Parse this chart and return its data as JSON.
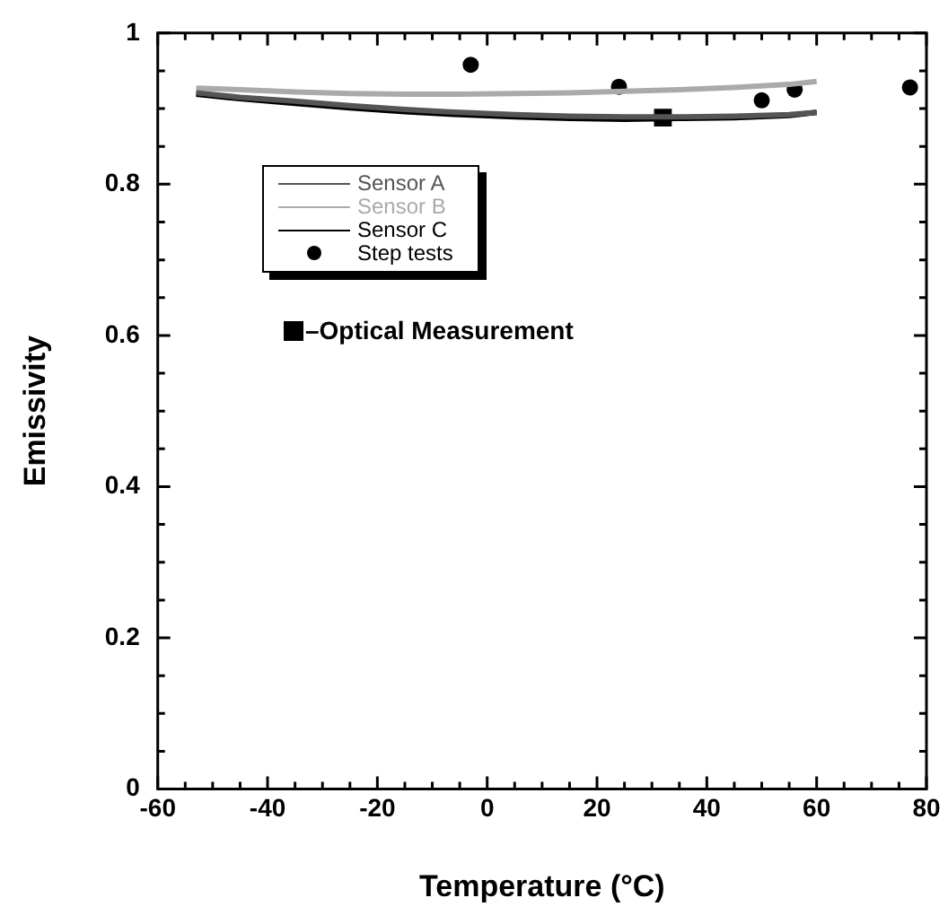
{
  "chart_data": {
    "type": "line",
    "xlabel": "Temperature (°C)",
    "ylabel": "Emissivity",
    "xlim": [
      -60,
      80
    ],
    "xticks": [
      -60,
      {
        "value": -55,
        "label": null
      },
      {
        "value": -50,
        "label": null
      },
      {
        "value": -45,
        "label": null
      },
      -40,
      {
        "value": -35,
        "label": null
      },
      {
        "value": -30,
        "label": null
      },
      {
        "value": -25,
        "label": null
      },
      -20,
      {
        "value": -15,
        "label": null
      },
      {
        "value": -10,
        "label": null
      },
      {
        "value": -5,
        "label": null
      },
      0,
      {
        "value": 5,
        "label": null
      },
      {
        "value": 10,
        "label": null
      },
      {
        "value": 15,
        "label": null
      },
      20,
      {
        "value": 25,
        "label": null
      },
      {
        "value": 30,
        "label": null
      },
      {
        "value": 35,
        "label": null
      },
      40,
      {
        "value": 45,
        "label": null
      },
      {
        "value": 50,
        "label": null
      },
      {
        "value": 55,
        "label": null
      },
      60,
      {
        "value": 65,
        "label": null
      },
      {
        "value": 70,
        "label": null
      },
      {
        "value": 75,
        "label": null
      },
      80
    ],
    "ylim": [
      0,
      1
    ],
    "yticks": [
      0,
      {
        "value": 0.05,
        "label": null
      },
      {
        "value": 0.1,
        "label": null
      },
      {
        "value": 0.15,
        "label": null
      },
      0.2,
      {
        "value": 0.25,
        "label": null
      },
      {
        "value": 0.3,
        "label": null
      },
      {
        "value": 0.35,
        "label": null
      },
      0.4,
      {
        "value": 0.45,
        "label": null
      },
      {
        "value": 0.5,
        "label": null
      },
      {
        "value": 0.55,
        "label": null
      },
      0.6,
      {
        "value": 0.65,
        "label": null
      },
      {
        "value": 0.7,
        "label": null
      },
      {
        "value": 0.75,
        "label": null
      },
      0.8,
      {
        "value": 0.85,
        "label": null
      },
      {
        "value": 0.9,
        "label": null
      },
      {
        "value": 0.95,
        "label": null
      },
      1
    ],
    "grid": false,
    "legend": "top left",
    "line_style": "solid",
    "series": [
      {
        "name": "Sensor A",
        "color": "#555555",
        "marker": "none",
        "x": [
          -53,
          -45,
          -35,
          -25,
          -15,
          -5,
          5,
          15,
          25,
          35,
          45,
          55,
          60
        ],
        "values": [
          0.921,
          0.915,
          0.91,
          0.904,
          0.899,
          0.895,
          0.892,
          0.89,
          0.889,
          0.889,
          0.89,
          0.892,
          0.895
        ]
      },
      {
        "name": "Sensor B",
        "color": "#aaaaaa",
        "marker": "none",
        "x": [
          -53,
          -45,
          -35,
          -25,
          -15,
          -5,
          5,
          15,
          25,
          35,
          45,
          55,
          60
        ],
        "values": [
          0.927,
          0.925,
          0.922,
          0.92,
          0.919,
          0.919,
          0.92,
          0.921,
          0.923,
          0.925,
          0.928,
          0.932,
          0.936
        ]
      },
      {
        "name": "Sensor C",
        "color": "#000000",
        "marker": "none",
        "x": [
          -53,
          -45,
          -35,
          -25,
          -15,
          -5,
          5,
          15,
          25,
          35,
          45,
          55,
          60
        ],
        "values": [
          0.919,
          0.913,
          0.907,
          0.901,
          0.896,
          0.892,
          0.889,
          0.887,
          0.886,
          0.887,
          0.888,
          0.891,
          0.895
        ]
      },
      {
        "name": "Step tests",
        "type": "scatter",
        "color": "#000000",
        "marker": "circle",
        "x": [
          -3,
          24,
          50,
          56,
          77
        ],
        "values": [
          0.958,
          0.929,
          0.911,
          0.925,
          0.928
        ]
      },
      {
        "name": "–Optical Measurement",
        "type": "scatter",
        "color": "#000000",
        "marker": "square",
        "x": [
          32
        ],
        "values": [
          0.888
        ]
      }
    ]
  }
}
